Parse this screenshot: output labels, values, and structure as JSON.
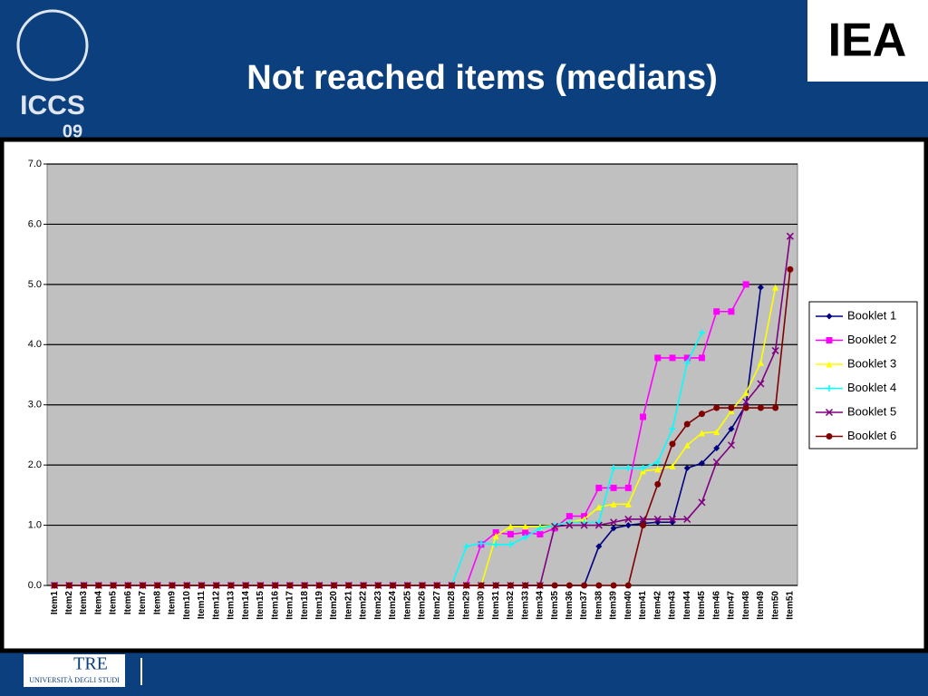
{
  "slide": {
    "title": "Not reached items (medians)",
    "logos": {
      "iccs": "ICCS",
      "iccs_year": "09",
      "iea": "IEA",
      "footer": "TRE",
      "footer_sub": "UNIVERSITÀ DEGLI STUDI"
    }
  },
  "chart_data": {
    "type": "line",
    "categories": [
      "Item1",
      "Item2",
      "Item3",
      "Item4",
      "Item5",
      "Item6",
      "Item7",
      "Item8",
      "Item9",
      "Item10",
      "Item11",
      "Item12",
      "Item13",
      "Item14",
      "Item15",
      "Item16",
      "Item17",
      "Item18",
      "Item19",
      "Item20",
      "Item21",
      "Item22",
      "Item23",
      "Item24",
      "Item25",
      "Item26",
      "Item27",
      "Item28",
      "Item29",
      "Item30",
      "Item31",
      "Item32",
      "Item33",
      "Item34",
      "Item35",
      "Item36",
      "Item37",
      "Item38",
      "Item39",
      "Item40",
      "Item41",
      "Item42",
      "Item43",
      "Item44",
      "Item45",
      "Item46",
      "Item47",
      "Item48",
      "Item49",
      "Item50",
      "Item51"
    ],
    "ylim": [
      0,
      7
    ],
    "yticks": [
      {
        "value": 0,
        "label": "0.0"
      },
      {
        "value": 1,
        "label": "1.0"
      },
      {
        "value": 2,
        "label": "2.0"
      },
      {
        "value": 3,
        "label": "3.0"
      },
      {
        "value": 4,
        "label": "4.0"
      },
      {
        "value": 5,
        "label": "5.0"
      },
      {
        "value": 6,
        "label": "6.0"
      },
      {
        "value": 7,
        "label": "7.0"
      }
    ],
    "grid": true,
    "legend": "right",
    "series": [
      {
        "name": "Booklet 1",
        "color": "#000080",
        "marker": "diamond",
        "values": [
          0,
          0,
          0,
          0,
          0,
          0,
          0,
          0,
          0,
          0,
          0,
          0,
          0,
          0,
          0,
          0,
          0,
          0,
          0,
          0,
          0,
          0,
          0,
          0,
          0,
          0,
          0,
          0,
          0,
          0,
          0,
          0,
          0,
          0,
          0,
          0,
          0,
          0.65,
          0.95,
          1.0,
          1.03,
          1.05,
          1.05,
          1.95,
          2.03,
          2.28,
          2.6,
          3.0,
          4.95,
          null,
          null
        ]
      },
      {
        "name": "Booklet 2",
        "color": "#ff00ff",
        "marker": "square",
        "values": [
          0,
          0,
          0,
          0,
          0,
          0,
          0,
          0,
          0,
          0,
          0,
          0,
          0,
          0,
          0,
          0,
          0,
          0,
          0,
          0,
          0,
          0,
          0,
          0,
          0,
          0,
          0,
          0,
          0,
          0.68,
          0.88,
          0.85,
          0.88,
          0.85,
          0.95,
          1.15,
          1.15,
          1.62,
          1.62,
          1.62,
          2.8,
          3.78,
          3.78,
          3.78,
          3.78,
          4.55,
          4.55,
          5.0,
          null,
          null,
          null
        ]
      },
      {
        "name": "Booklet 3",
        "color": "#ffff00",
        "marker": "triangle",
        "values": [
          0,
          0,
          0,
          0,
          0,
          0,
          0,
          0,
          0,
          0,
          0,
          0,
          0,
          0,
          0,
          0,
          0,
          0,
          0,
          0,
          0,
          0,
          0,
          0,
          0,
          0,
          0,
          0,
          0,
          0,
          0.82,
          0.98,
          0.98,
          0.98,
          1.0,
          1.05,
          1.1,
          1.3,
          1.35,
          1.35,
          1.9,
          1.93,
          1.98,
          2.33,
          2.53,
          2.55,
          2.9,
          3.2,
          3.7,
          4.95,
          null
        ]
      },
      {
        "name": "Booklet 4",
        "color": "#00ffff",
        "marker": "cross",
        "values": [
          0,
          0,
          0,
          0,
          0,
          0,
          0,
          0,
          0,
          0,
          0,
          0,
          0,
          0,
          0,
          0,
          0,
          0,
          0,
          0,
          0,
          0,
          0,
          0,
          0,
          0,
          0,
          0,
          0.65,
          0.7,
          0.68,
          0.68,
          0.8,
          0.95,
          1.0,
          1.05,
          1.05,
          1.05,
          1.95,
          1.95,
          1.95,
          2.05,
          2.6,
          3.7,
          4.2,
          null,
          null,
          null,
          null,
          null,
          null
        ]
      },
      {
        "name": "Booklet 5",
        "color": "#800080",
        "marker": "x",
        "values": [
          0,
          0,
          0,
          0,
          0,
          0,
          0,
          0,
          0,
          0,
          0,
          0,
          0,
          0,
          0,
          0,
          0,
          0,
          0,
          0,
          0,
          0,
          0,
          0,
          0,
          0,
          0,
          0,
          0,
          0,
          0,
          0,
          0,
          0,
          0.98,
          1.0,
          1.0,
          1.0,
          1.05,
          1.1,
          1.1,
          1.1,
          1.1,
          1.1,
          1.38,
          2.05,
          2.33,
          3.05,
          3.35,
          3.9,
          5.8
        ]
      },
      {
        "name": "Booklet 6",
        "color": "#800000",
        "marker": "circle",
        "values": [
          0,
          0,
          0,
          0,
          0,
          0,
          0,
          0,
          0,
          0,
          0,
          0,
          0,
          0,
          0,
          0,
          0,
          0,
          0,
          0,
          0,
          0,
          0,
          0,
          0,
          0,
          0,
          0,
          0,
          0,
          0,
          0,
          0,
          0,
          0,
          0,
          0,
          0,
          0,
          0,
          1.0,
          1.68,
          2.35,
          2.68,
          2.85,
          2.95,
          2.95,
          2.95,
          2.95,
          2.95,
          5.25
        ]
      }
    ]
  }
}
